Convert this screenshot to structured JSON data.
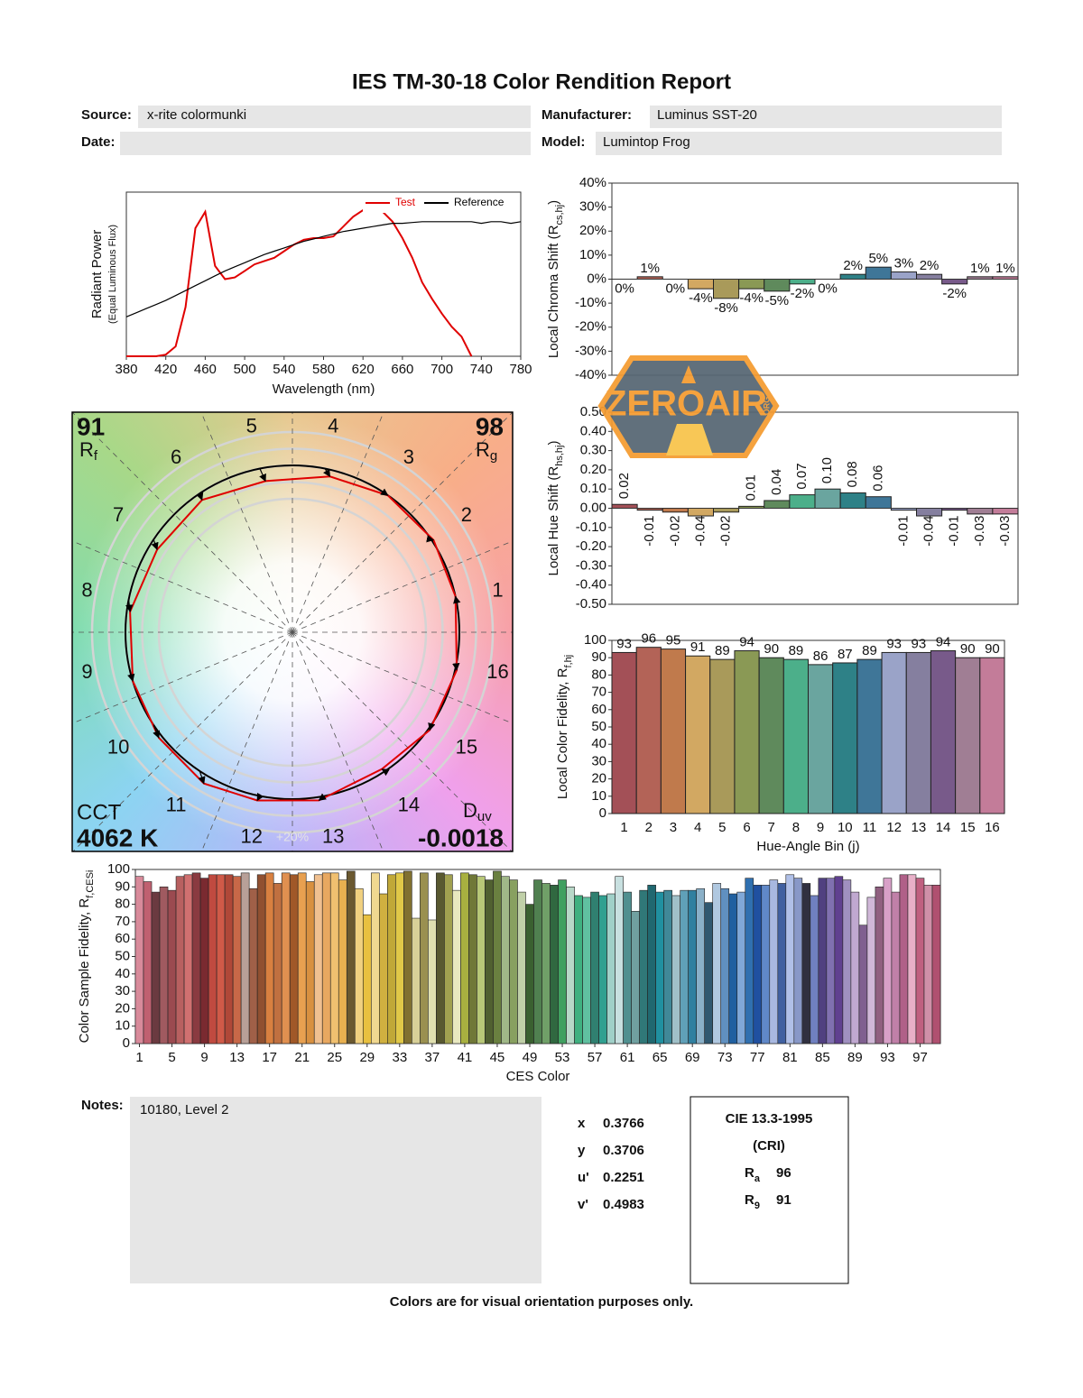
{
  "title": "IES TM-30-18 Color Rendition Report",
  "fields": {
    "source": {
      "label": "Source:",
      "value": "x-rite colormunki"
    },
    "manufacturer": {
      "label": "Manufacturer:",
      "value": "Luminus SST-20"
    },
    "date": {
      "label": "Date:"
    },
    "model": {
      "label": "Model:",
      "value": "Lumintop Frog"
    }
  },
  "chart_data": [
    {
      "type": "line",
      "x_label": "Wavelength (nm)",
      "y_label": "Radiant Power",
      "y_sublabel": "(Equal Luminous Flux)",
      "x": [
        380,
        390,
        400,
        410,
        420,
        430,
        440,
        450,
        460,
        470,
        480,
        490,
        500,
        510,
        520,
        530,
        540,
        550,
        560,
        570,
        580,
        590,
        600,
        610,
        620,
        630,
        640,
        650,
        660,
        670,
        680,
        690,
        700,
        710,
        720,
        730,
        740,
        750,
        760,
        770,
        780
      ],
      "xlim": [
        380,
        780
      ],
      "xticks": [
        380,
        420,
        460,
        500,
        540,
        580,
        620,
        660,
        700,
        740,
        780
      ],
      "ylim": [
        0,
        1
      ],
      "legend": "upper right",
      "series": [
        {
          "name": "Test",
          "color": "#e00000",
          "values": [
            0,
            0,
            0,
            0,
            0.01,
            0.06,
            0.3,
            0.78,
            0.88,
            0.55,
            0.47,
            0.48,
            0.52,
            0.56,
            0.58,
            0.6,
            0.64,
            0.68,
            0.71,
            0.72,
            0.72,
            0.73,
            0.79,
            0.85,
            0.89,
            0.91,
            0.88,
            0.82,
            0.72,
            0.6,
            0.45,
            0.35,
            0.26,
            0.18,
            0.12,
            0,
            null,
            null,
            null,
            null,
            null
          ]
        },
        {
          "name": "Reference",
          "color": "#000000",
          "values": [
            0.24,
            0.265,
            0.29,
            0.315,
            0.34,
            0.37,
            0.4,
            0.43,
            0.46,
            0.49,
            0.52,
            0.545,
            0.57,
            0.595,
            0.62,
            0.64,
            0.66,
            0.68,
            0.7,
            0.715,
            0.73,
            0.745,
            0.76,
            0.77,
            0.78,
            0.79,
            0.8,
            0.81,
            0.81,
            0.815,
            0.82,
            0.82,
            0.82,
            0.82,
            0.82,
            0.82,
            0.81,
            0.82,
            0.82,
            0.81,
            0.82
          ]
        }
      ]
    },
    {
      "type": "bar",
      "y_label": [
        "Local Chroma Shift (R",
        "cs,hj",
        ")"
      ],
      "values": [
        0,
        1,
        0,
        -4,
        -8,
        -4,
        -5,
        -2,
        0,
        2,
        5,
        3,
        2,
        -2,
        1,
        1
      ],
      "value_labels": [
        "0%",
        "1%",
        "0%",
        "-4%",
        "-8%",
        "-4%",
        "-5%",
        "-2%",
        "0%",
        "2%",
        "5%",
        "3%",
        "2%",
        "-2%",
        "1%",
        "1%"
      ],
      "colors": [
        "#a35057",
        "#b36357",
        "#c07a4c",
        "#d2a862",
        "#a99a5a",
        "#8a9955",
        "#5f8a5c",
        "#4caf8a",
        "#6aa59f",
        "#2e8187",
        "#3f7698",
        "#9aa3c8",
        "#857f9f",
        "#785a8a",
        "#a07e94",
        "#c37c99"
      ],
      "ylim": [
        -40,
        40
      ],
      "yticks": [
        {
          "value": 40,
          "label": "40%"
        },
        {
          "value": 30,
          "label": "30%"
        },
        {
          "value": 20,
          "label": "20%"
        },
        {
          "value": 10,
          "label": "10%"
        },
        {
          "value": 0,
          "label": "0%"
        },
        {
          "value": -10,
          "label": "-10%"
        },
        {
          "value": -20,
          "label": "-20%"
        },
        {
          "value": -30,
          "label": "-30%"
        },
        {
          "value": -40,
          "label": "-40%"
        }
      ]
    },
    {
      "type": "bar",
      "y_label": [
        "Local Hue Shift (R",
        "hs,hj",
        ")"
      ],
      "values": [
        0.02,
        -0.01,
        -0.02,
        -0.04,
        -0.02,
        0.01,
        0.04,
        0.07,
        0.1,
        0.08,
        0.06,
        -0.01,
        -0.04,
        -0.01,
        -0.03,
        -0.03
      ],
      "value_labels": [
        "0.02",
        "-0.01",
        "-0.02",
        "-0.04",
        "-0.02",
        "0.01",
        "0.04",
        "0.07",
        "0.10",
        "0.08",
        "0.06",
        "-0.01",
        "-0.04",
        "-0.01",
        "-0.03",
        "-0.03"
      ],
      "value_label_rotation": 90,
      "colors": [
        "#a35057",
        "#b36357",
        "#c07a4c",
        "#d2a862",
        "#a99a5a",
        "#8a9955",
        "#5f8a5c",
        "#4caf8a",
        "#6aa59f",
        "#2e8187",
        "#3f7698",
        "#9aa3c8",
        "#857f9f",
        "#785a8a",
        "#a07e94",
        "#c37c99"
      ],
      "ylim": [
        -0.5,
        0.5
      ],
      "yticks": [
        {
          "value": 0.5,
          "label": "0.50"
        },
        {
          "value": 0.4,
          "label": "0.40"
        },
        {
          "value": 0.3,
          "label": "0.30"
        },
        {
          "value": 0.2,
          "label": "0.20"
        },
        {
          "value": 0.1,
          "label": "0.10"
        },
        {
          "value": 0,
          "label": "0.00"
        },
        {
          "value": -0.1,
          "label": "-0.10"
        },
        {
          "value": -0.2,
          "label": "-0.20"
        },
        {
          "value": -0.3,
          "label": "-0.30"
        },
        {
          "value": -0.4,
          "label": "-0.40"
        },
        {
          "value": -0.5,
          "label": "-0.50"
        }
      ]
    },
    {
      "type": "vector",
      "bin_labels": [
        "1",
        "2",
        "3",
        "4",
        "5",
        "6",
        "7",
        "8",
        "9",
        "10",
        "11",
        "12",
        "13",
        "14",
        "15",
        "16"
      ],
      "ring_label": "+20%",
      "rf": 91,
      "rf_label": [
        "R",
        "f"
      ],
      "rg": 98,
      "rg_label": [
        "R",
        "g"
      ],
      "cct_label": "CCT",
      "cct": "4062 K",
      "duv_label": [
        "D",
        "uv"
      ],
      "duv": "-0.0018",
      "test_color": "#e00000",
      "reference_color": "#000000"
    },
    {
      "type": "bar",
      "x_label": "Hue-Angle Bin (j)",
      "y_label": [
        "Local Color Fidelity, R",
        "f,hj"
      ],
      "categories": [
        "1",
        "2",
        "3",
        "4",
        "5",
        "6",
        "7",
        "8",
        "9",
        "10",
        "11",
        "12",
        "13",
        "14",
        "15",
        "16"
      ],
      "values": [
        93,
        96,
        95,
        91,
        89,
        94,
        90,
        89,
        86,
        87,
        89,
        93,
        93,
        94,
        90,
        90
      ],
      "data_labels": true,
      "colors": [
        "#a35057",
        "#b36357",
        "#c07a4c",
        "#d2a862",
        "#a99a5a",
        "#8a9955",
        "#5f8a5c",
        "#4caf8a",
        "#6aa59f",
        "#2e8187",
        "#3f7698",
        "#9aa3c8",
        "#857f9f",
        "#785a8a",
        "#a07e94",
        "#c37c99"
      ],
      "ylim": [
        0,
        100
      ],
      "yticks": [
        0,
        10,
        20,
        30,
        40,
        50,
        60,
        70,
        80,
        90,
        100
      ]
    },
    {
      "type": "bar",
      "x_label": "CES Color",
      "y_label": [
        "Color Sample Fidelity, R",
        "f,CESi"
      ],
      "x": [
        1,
        2,
        3,
        4,
        5,
        6,
        7,
        8,
        9,
        10,
        11,
        12,
        13,
        14,
        15,
        16,
        17,
        18,
        19,
        20,
        21,
        22,
        23,
        24,
        25,
        26,
        27,
        28,
        29,
        30,
        31,
        32,
        33,
        34,
        35,
        36,
        37,
        38,
        39,
        40,
        41,
        42,
        43,
        44,
        45,
        46,
        47,
        48,
        49,
        50,
        51,
        52,
        53,
        54,
        55,
        56,
        57,
        58,
        59,
        60,
        61,
        62,
        63,
        64,
        65,
        66,
        67,
        68,
        69,
        70,
        71,
        72,
        73,
        74,
        75,
        76,
        77,
        78,
        79,
        80,
        81,
        82,
        83,
        84,
        85,
        86,
        87,
        88,
        89,
        90,
        91,
        92,
        93,
        94,
        95,
        96,
        97,
        98,
        99
      ],
      "values": [
        96,
        93,
        87,
        90,
        88,
        96,
        97,
        98,
        95,
        97,
        97,
        97,
        96,
        98,
        89,
        97,
        98,
        92,
        98,
        97,
        98,
        93,
        97,
        98,
        98,
        94,
        99,
        89,
        74,
        98,
        86,
        97,
        98,
        99,
        72,
        98,
        71,
        98,
        97,
        88,
        98,
        97,
        96,
        94,
        99,
        96,
        94,
        87,
        80,
        94,
        92,
        91,
        94,
        90,
        85,
        84,
        87,
        85,
        86,
        96,
        87,
        76,
        88,
        91,
        87,
        88,
        85,
        88,
        88,
        89,
        81,
        92,
        89,
        86,
        87,
        95,
        91,
        91,
        94,
        92,
        97,
        95,
        92,
        85,
        95,
        95,
        96,
        94,
        87,
        68,
        84,
        90,
        95,
        87,
        97,
        97,
        95,
        91,
        91
      ],
      "colors": [
        "#d88a9a",
        "#c06070",
        "#6b3a40",
        "#a05a60",
        "#9b4a50",
        "#b86060",
        "#d07070",
        "#8a3a40",
        "#7a2a30",
        "#c04a40",
        "#d05a48",
        "#b04838",
        "#c86848",
        "#b8a098",
        "#a06048",
        "#905030",
        "#d88040",
        "#c07040",
        "#e09050",
        "#a05828",
        "#e8a050",
        "#d89040",
        "#f0c090",
        "#e8a860",
        "#f0c070",
        "#e8b050",
        "#6a5830",
        "#f0d080",
        "#e8c040",
        "#f0d890",
        "#d0b040",
        "#c0a838",
        "#e0c848",
        "#807030",
        "#d8d098",
        "#9a9050",
        "#e0e0b0",
        "#585830",
        "#a0a050",
        "#e8e8c0",
        "#a8b040",
        "#707838",
        "#b8c878",
        "#506030",
        "#6a8040",
        "#a0b888",
        "#88a060",
        "#c0d0a8",
        "#3a6030",
        "#508050",
        "#70a068",
        "#306840",
        "#40a060",
        "#b8d8c8",
        "#40b080",
        "#60c0a0",
        "#308070",
        "#30a090",
        "#a0d0c8",
        "#c8e0e0",
        "#509090",
        "#70a0a0",
        "#307878",
        "#206870",
        "#2090a0",
        "#408898",
        "#a0c0c8",
        "#60a0b8",
        "#3080a0",
        "#8ab0c8",
        "#305870",
        "#b0c8e0",
        "#6090c0",
        "#2060a0",
        "#80a8d8",
        "#3070b0",
        "#2050a0",
        "#6088c8",
        "#a8b8e0",
        "#4060a0",
        "#b0c0e8",
        "#8898c8",
        "#303040",
        "#7080c0",
        "#504080",
        "#8070b0",
        "#604090",
        "#a090c0",
        "#c0a8d0",
        "#806090",
        "#d0b8d8",
        "#906080",
        "#d8a0c8",
        "#c080a8",
        "#b06088",
        "#e8b0c8",
        "#c06080",
        "#d090a8",
        "#b05070"
      ],
      "xlim": [
        0.5,
        99.5
      ],
      "xticks": [
        1,
        5,
        9,
        13,
        17,
        21,
        25,
        29,
        33,
        37,
        41,
        45,
        49,
        53,
        57,
        61,
        65,
        69,
        73,
        77,
        81,
        85,
        89,
        93,
        97
      ],
      "ylim": [
        0,
        100
      ],
      "yticks": [
        0,
        10,
        20,
        30,
        40,
        50,
        60,
        70,
        80,
        90,
        100
      ]
    }
  ],
  "notes": {
    "label": "Notes:",
    "text": "10180, Level 2"
  },
  "chromaticity": [
    {
      "label": "x",
      "value": 0.3766
    },
    {
      "label": "y",
      "value": 0.3706
    },
    {
      "label": "u'",
      "value": 0.2251
    },
    {
      "label": "v'",
      "value": 0.4983
    }
  ],
  "cri": {
    "title": "CIE 13.3-1995",
    "subtitle": "(CRI)",
    "ra_label": [
      "R",
      "a"
    ],
    "ra": 96,
    "r9_label": [
      "R",
      "9"
    ],
    "r9": 91
  },
  "footer": "Colors are for visual orientation purposes only.",
  "watermark": {
    "text": "ZEROAIR",
    "suffix": "ORG"
  }
}
